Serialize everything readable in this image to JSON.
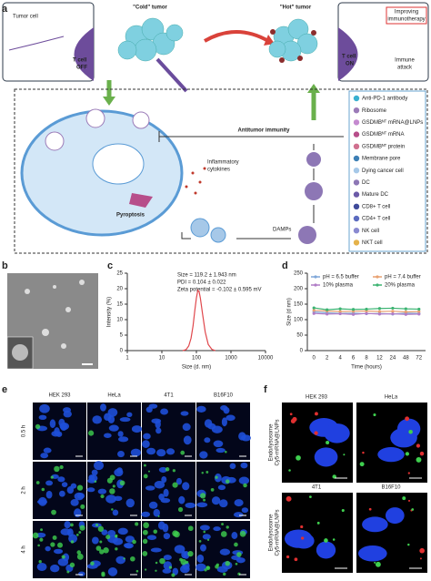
{
  "panel_labels": [
    "a",
    "b",
    "c",
    "d",
    "e",
    "f"
  ],
  "panel_a": {
    "cold_tumor": "\"Cold\" tumor",
    "hot_tumor": "\"Hot\" tumor",
    "tumor_cell": "Tumor cell",
    "t_cell_off": [
      "T cell",
      "OFF"
    ],
    "t_cell_on": [
      "T cell",
      "ON"
    ],
    "improving": [
      "Improving",
      "immunotherapy"
    ],
    "immune_attack": [
      "Immune",
      "attack"
    ],
    "antitumor": "Antitumor immunity",
    "pyroptosis": "Pyroptosis",
    "cytokines": [
      "Inflammatory",
      "cytokines"
    ],
    "damps": "DAMPs",
    "legend": [
      "Anti-PD-1 antibody",
      "Ribosome",
      "GSDMBᴺᵀ mRNA@LNPs",
      "GSDMBᴺᵀ mRNA",
      "GSDMBᴺᵀ protein",
      "Membrane pore",
      "Dying cancer cell",
      "DC",
      "Mature DC",
      "CD8+ T cell",
      "CD4+ T cell",
      "NK cell",
      "NKT cell"
    ]
  },
  "chart_data": [
    {
      "type": "line",
      "x_label": "Size (d. nm)",
      "y_label": "Intensity (%)",
      "xscale": "log",
      "xlim": [
        1,
        10000
      ],
      "xticks": [
        1,
        10,
        100,
        1000,
        10000
      ],
      "ylim": [
        0,
        25
      ],
      "yticks": [
        0,
        5,
        10,
        15,
        20,
        25
      ],
      "annotations": [
        "Size = 119.2 ± 1.943 nm",
        "PDI = 0.104 ± 0.022",
        "Zeta potential = -0.102 ± 0.595 mV"
      ],
      "x": [
        40,
        50,
        60,
        70,
        80,
        90,
        100,
        110,
        120,
        130,
        150,
        180,
        220,
        280,
        350
      ],
      "series": [
        {
          "color": "#e0474c",
          "values": [
            0,
            0.3,
            1.5,
            4,
            8,
            13,
            17,
            19.5,
            19,
            17,
            12,
            6,
            2,
            0.4,
            0
          ]
        }
      ]
    },
    {
      "type": "line",
      "x_label": "Time (hours)",
      "y_label": "Size (d nm)",
      "categories": [
        "0",
        "2",
        "4",
        "6",
        "8",
        "12",
        "24",
        "48",
        "72"
      ],
      "ylim": [
        0,
        250
      ],
      "yticks": [
        0,
        50,
        100,
        150,
        200,
        250
      ],
      "series": [
        {
          "name": "pH = 6.5 buffer",
          "color": "#7fa7d9",
          "values": [
            125,
            122,
            120,
            121,
            119,
            120,
            118,
            121,
            120
          ]
        },
        {
          "name": "pH = 7.4 buffer",
          "color": "#e8a070",
          "values": [
            130,
            128,
            126,
            127,
            128,
            126,
            127,
            125,
            126
          ]
        },
        {
          "name": "10% plasma",
          "color": "#b07cc6",
          "values": [
            120,
            118,
            119,
            117,
            120,
            118,
            119,
            117,
            118
          ]
        },
        {
          "name": "20% plasma",
          "color": "#3cb371",
          "values": [
            138,
            132,
            135,
            133,
            134,
            136,
            137,
            135,
            134
          ]
        }
      ]
    }
  ],
  "panel_e": {
    "columns": [
      "HEK 293",
      "HeLa",
      "4T1",
      "B16F10"
    ],
    "rows": [
      "0.5 h",
      "2 h",
      "4 h"
    ]
  },
  "panel_f": {
    "top_columns": [
      "HEK 293",
      "HeLa"
    ],
    "bottom_columns": [
      "4T1",
      "B16F10"
    ],
    "side_label": [
      "Endo/lysosome",
      "Cy5-mRNA@LNPs"
    ]
  }
}
